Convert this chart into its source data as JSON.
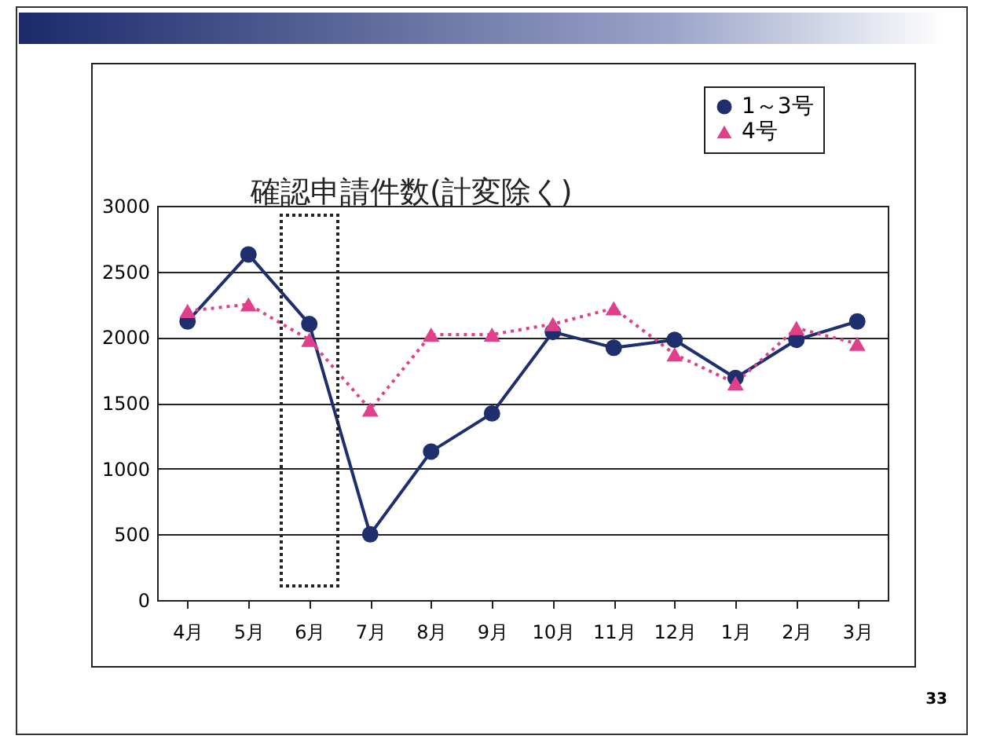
{
  "chart_data": {
    "type": "line",
    "title": "確認申請件数(計変除く)",
    "categories": [
      "4月",
      "5月",
      "6月",
      "7月",
      "8月",
      "9月",
      "10月",
      "11月",
      "12月",
      "1月",
      "2月",
      "3月"
    ],
    "series": [
      {
        "name": "1～3号",
        "color": "#1f2f6e",
        "marker": "circle",
        "line_style": "solid",
        "values": [
          2120,
          2630,
          2100,
          500,
          1130,
          1420,
          2040,
          1920,
          1980,
          1690,
          1980,
          2120
        ]
      },
      {
        "name": "4号",
        "color": "#e0408a",
        "marker": "triangle",
        "line_style": "dotted",
        "values": [
          2200,
          2250,
          1980,
          1450,
          2020,
          2020,
          2100,
          2220,
          1870,
          1650,
          2070,
          1950
        ]
      }
    ],
    "ylim": [
      0,
      3000
    ],
    "yticks": [
      0,
      500,
      1000,
      1500,
      2000,
      2500,
      3000
    ],
    "grid": "y",
    "legend": "top right",
    "annotations": [
      "33"
    ]
  }
}
